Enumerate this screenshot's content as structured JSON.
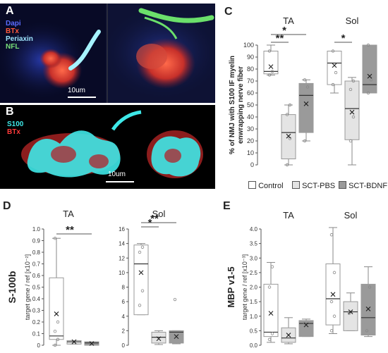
{
  "panel_a": {
    "label": "A",
    "channels": [
      {
        "name": "Dapi",
        "color": "#4a5cff"
      },
      {
        "name": "BTx",
        "color": "#ff5a3c"
      },
      {
        "name": "Periaxin",
        "color": "#9fe6ff"
      },
      {
        "name": "NFL",
        "color": "#78e07a"
      }
    ],
    "scale_bar": "10um"
  },
  "panel_b": {
    "label": "B",
    "channels": [
      {
        "name": "S100",
        "color": "#3ee8e8"
      },
      {
        "name": "BTx",
        "color": "#ff3a3a"
      }
    ],
    "scale_bar": "10um"
  },
  "legend": {
    "items": [
      {
        "name": "Control",
        "color": "#ffffff"
      },
      {
        "name": "SCT-PBS",
        "color": "#e4e4e4"
      },
      {
        "name": "SCT-BDNF",
        "color": "#9a9a9a"
      }
    ]
  },
  "chart_data": [
    {
      "panel": "C",
      "type": "box",
      "ylabel": "% of NMJ with S100 IF myelin enwrapping nerve fiber",
      "ylim": [
        0,
        100
      ],
      "yticks": [
        0,
        10,
        20,
        30,
        40,
        50,
        60,
        70,
        80,
        90,
        100
      ],
      "groups": [
        {
          "name": "TA",
          "boxes": [
            {
              "series": "Control",
              "min": 75,
              "q1": 76,
              "median": 78,
              "q3": 95,
              "max": 100,
              "mean": 82,
              "points": [
                75,
                78,
                95
              ]
            },
            {
              "series": "SCT-PBS",
              "min": 0,
              "q1": 5,
              "median": 27,
              "q3": 42,
              "max": 50,
              "mean": 24,
              "points": [
                0,
                22,
                42,
                50
              ]
            },
            {
              "series": "SCT-BDNF",
              "min": 20,
              "q1": 27,
              "median": 58,
              "q3": 68,
              "max": 71,
              "mean": 51,
              "points": [
                20,
                65,
                71
              ]
            }
          ],
          "significance": [
            {
              "text": "**",
              "from": 0,
              "to": 1
            },
            {
              "text": "*",
              "from": 0,
              "to": 2
            }
          ]
        },
        {
          "name": "Sol",
          "boxes": [
            {
              "series": "Control",
              "min": 60,
              "q1": 67,
              "median": 85,
              "q3": 95,
              "max": 95,
              "mean": 83,
              "points": [
                67,
                77,
                95
              ]
            },
            {
              "series": "SCT-PBS",
              "min": 0,
              "q1": 21,
              "median": 47,
              "q3": 70,
              "max": 73,
              "mean": 44,
              "points": [
                20,
                40,
                63,
                70
              ]
            },
            {
              "series": "SCT-BDNF",
              "min": 60,
              "q1": 60,
              "median": 67,
              "q3": 100,
              "max": 100,
              "mean": 74,
              "points": [
                60,
                71,
                100
              ]
            }
          ],
          "significance": [
            {
              "text": "*",
              "from": 0,
              "to": 1
            }
          ]
        }
      ]
    },
    {
      "panel": "D",
      "type": "box",
      "ylabel_main": "S-100b",
      "ylabel": "target gene / ref [x10⁻²]",
      "subplots": [
        {
          "name": "TA",
          "ylim": [
            0,
            1.0
          ],
          "yticks": [
            0,
            0.1,
            0.2,
            0.3,
            0.4,
            0.5,
            0.6,
            0.7,
            0.8,
            0.9,
            1.0
          ],
          "ytick_labels": [
            "0",
            "0.1",
            "0.2",
            "0.3",
            "0.4",
            "0.5",
            "0.6",
            "0.7",
            "0.8",
            "0.9",
            "1.0"
          ],
          "boxes": [
            {
              "series": "Control",
              "min": 0.0,
              "q1": 0.05,
              "median": 0.08,
              "q3": 0.58,
              "max": 0.92,
              "mean": 0.27,
              "points": [
                0.0,
                0.05,
                0.12,
                0.2,
                0.92
              ]
            },
            {
              "series": "SCT-PBS",
              "min": 0.01,
              "q1": 0.01,
              "median": 0.03,
              "q3": 0.04,
              "max": 0.04,
              "mean": 0.03,
              "points": []
            },
            {
              "series": "SCT-BDNF",
              "min": 0.0,
              "q1": 0.0,
              "median": 0.02,
              "q3": 0.03,
              "max": 0.03,
              "mean": 0.015,
              "points": []
            }
          ],
          "significance": [
            {
              "text": "**",
              "from": 0,
              "to": 2
            }
          ]
        },
        {
          "name": "Sol",
          "ylim": [
            0,
            16
          ],
          "yticks": [
            0,
            2,
            4,
            6,
            8,
            10,
            12,
            14,
            16
          ],
          "ytick_labels": [
            "0",
            "2",
            "4",
            "6",
            "8",
            "10",
            "12",
            "14",
            "16"
          ],
          "boxes": [
            {
              "series": "Control",
              "min": 4.2,
              "q1": 4.2,
              "median": 11.2,
              "q3": 13.8,
              "max": 14.0,
              "mean": 10.0,
              "points": [
                5.5,
                7.5,
                12.8,
                13.5
              ]
            },
            {
              "series": "SCT-PBS",
              "min": 0.1,
              "q1": 0.3,
              "median": 1.1,
              "q3": 1.8,
              "max": 2.0,
              "mean": 0.9,
              "points": []
            },
            {
              "series": "SCT-BDNF",
              "min": 0.2,
              "q1": 0.3,
              "median": 1.8,
              "q3": 2.0,
              "max": 2.0,
              "mean": 1.2,
              "points": [
                6.3
              ]
            }
          ],
          "significance": [
            {
              "text": "*",
              "from": 0,
              "to": 1
            },
            {
              "text": "**",
              "from": 0,
              "to": 2
            }
          ]
        }
      ]
    },
    {
      "panel": "E",
      "type": "box",
      "ylabel_main": "MBP v1-5",
      "ylabel": "target gene / ref [x10⁻³]",
      "ylim": [
        0,
        4.0
      ],
      "yticks": [
        0,
        0.5,
        1.0,
        1.5,
        2.0,
        2.5,
        3.0,
        3.5,
        4.0
      ],
      "ytick_labels": [
        "0.0",
        "0.5",
        "1.0",
        "1.5",
        "2.0",
        "2.5",
        "3.0",
        "3.5",
        "4.0"
      ],
      "groups": [
        {
          "name": "TA",
          "boxes": [
            {
              "series": "Control",
              "min": 0.1,
              "q1": 0.3,
              "median": 0.45,
              "q3": 2.1,
              "max": 2.85,
              "mean": 1.1,
              "points": [
                0.2,
                0.4,
                2.0,
                2.7
              ]
            },
            {
              "series": "SCT-PBS",
              "min": 0.05,
              "q1": 0.1,
              "median": 0.25,
              "q3": 0.6,
              "max": 0.95,
              "mean": 0.35,
              "points": []
            },
            {
              "series": "SCT-BDNF",
              "min": 0.3,
              "q1": 0.3,
              "median": 0.75,
              "q3": 0.85,
              "max": 0.9,
              "mean": 0.7,
              "points": [
                0.75
              ]
            }
          ]
        },
        {
          "name": "Sol",
          "boxes": [
            {
              "series": "Control",
              "min": 0.4,
              "q1": 0.7,
              "median": 1.6,
              "q3": 2.8,
              "max": 4.05,
              "mean": 1.75,
              "points": [
                0.5,
                1.0,
                1.5,
                2.5,
                3.8
              ]
            },
            {
              "series": "SCT-PBS",
              "min": 0.5,
              "q1": 0.5,
              "median": 1.15,
              "q3": 1.5,
              "max": 1.8,
              "mean": 1.15,
              "points": [
                1.1
              ]
            },
            {
              "series": "SCT-BDNF",
              "min": 0.3,
              "q1": 0.35,
              "median": 0.95,
              "q3": 2.1,
              "max": 2.7,
              "mean": 1.25,
              "points": [
                0.5,
                2.0
              ]
            }
          ]
        }
      ]
    }
  ],
  "panel_labels": {
    "c": "C",
    "d": "D",
    "e": "E"
  }
}
